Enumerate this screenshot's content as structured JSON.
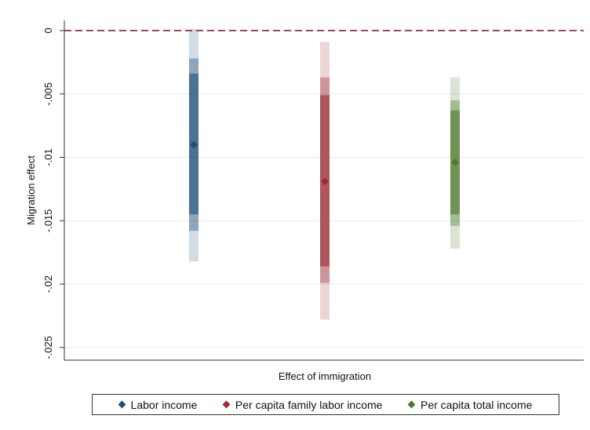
{
  "chart_data": {
    "type": "interval",
    "ylabel": "Migration effect",
    "xlabel": "Effect of immigration",
    "ylim": [
      -0.026,
      0.0008
    ],
    "yticks": [
      {
        "value": 0,
        "label": "0"
      },
      {
        "value": -0.005,
        "label": "-.005"
      },
      {
        "value": -0.01,
        "label": "-.01"
      },
      {
        "value": -0.015,
        "label": "-.015"
      },
      {
        "value": -0.02,
        "label": "-.02"
      },
      {
        "value": -0.025,
        "label": "-.025"
      }
    ],
    "grid": true,
    "reference_line": {
      "value": 0,
      "style": "dashed",
      "color": "#8b1a3a"
    },
    "legend_position": "bottom",
    "series": [
      {
        "name": "Labor income",
        "color": "#1f4e79",
        "estimate": -0.009,
        "intervals": [
          [
            -0.0145,
            -0.0034
          ],
          [
            -0.0158,
            -0.0022
          ],
          [
            -0.0182,
            0.0001
          ]
        ]
      },
      {
        "name": "Per capita family labor income",
        "color": "#9b2c35",
        "estimate": -0.0119,
        "intervals": [
          [
            -0.0186,
            -0.0051
          ],
          [
            -0.0199,
            -0.0037
          ],
          [
            -0.0228,
            -0.0009
          ]
        ]
      },
      {
        "name": "Per capita total income",
        "color": "#4d7a2a",
        "estimate": -0.0104,
        "intervals": [
          [
            -0.0145,
            -0.0063
          ],
          [
            -0.0154,
            -0.0055
          ],
          [
            -0.0172,
            -0.0037
          ]
        ]
      }
    ]
  }
}
